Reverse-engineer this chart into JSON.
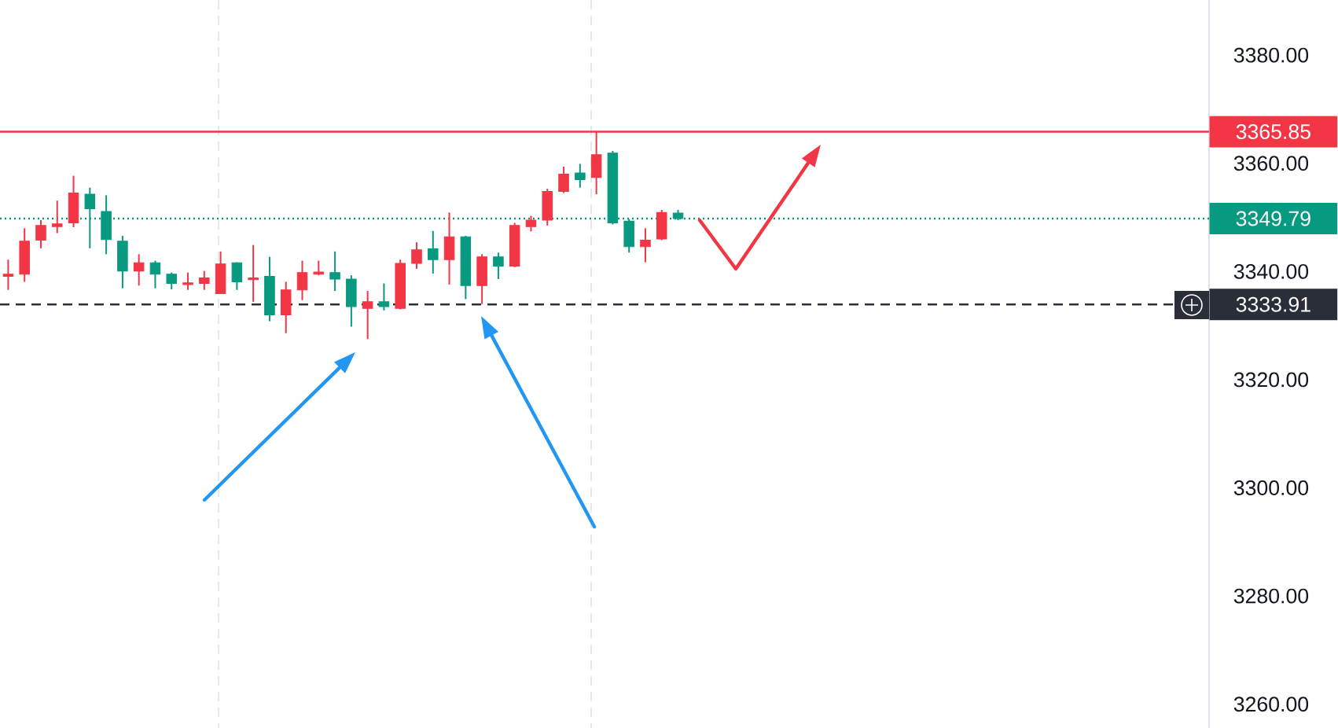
{
  "chart_data": {
    "type": "candlestick",
    "categories": [
      null,
      null,
      null,
      null,
      null,
      null,
      null,
      null,
      null,
      null,
      null,
      null,
      null,
      null,
      null,
      null,
      null,
      null,
      null,
      null,
      null,
      null,
      null,
      null,
      null,
      null,
      null,
      null,
      null,
      null,
      null,
      null,
      null,
      null,
      null,
      null,
      null,
      null,
      null,
      null,
      null,
      null,
      null,
      null,
      null,
      null,
      null,
      null,
      null,
      null,
      null,
      null,
      null,
      null,
      null,
      null,
      null,
      null,
      null,
      null,
      null,
      null,
      null,
      null,
      null,
      null,
      null,
      null,
      null,
      null,
      null,
      null,
      null,
      null
    ],
    "ohlc": [
      [
        3339.1,
        3342.2,
        3336.6,
        3339.5
      ],
      [
        3339.5,
        3348.0,
        3338.1,
        3345.6
      ],
      [
        3345.8,
        3349.5,
        3344.3,
        3348.5
      ],
      [
        3348.3,
        3353.1,
        3347.1,
        3348.8
      ],
      [
        3349.0,
        3357.7,
        3348.2,
        3354.5
      ],
      [
        3354.3,
        3355.5,
        3344.3,
        3351.6
      ],
      [
        3351.1,
        3354.1,
        3343.2,
        3345.9
      ],
      [
        3345.6,
        3346.6,
        3336.9,
        3340.1
      ],
      [
        3340.1,
        3343.2,
        3337.4,
        3341.6
      ],
      [
        3341.6,
        3342.0,
        3336.9,
        3339.5
      ],
      [
        3339.5,
        3339.8,
        3336.7,
        3337.8
      ],
      [
        3337.6,
        3339.8,
        3336.6,
        3337.9
      ],
      [
        3337.8,
        3340.1,
        3336.6,
        3338.8
      ],
      [
        3335.9,
        3343.7,
        3335.9,
        3341.4
      ],
      [
        3341.6,
        3341.7,
        3336.6,
        3338.1
      ],
      [
        3338.5,
        3344.9,
        3334.4,
        3338.8
      ],
      [
        3339.1,
        3342.7,
        3330.8,
        3332.0
      ],
      [
        3332.0,
        3338.1,
        3328.6,
        3336.6
      ],
      [
        3336.6,
        3342.0,
        3334.7,
        3339.8
      ],
      [
        3339.5,
        3342.0,
        3339.3,
        3339.9
      ],
      [
        3339.8,
        3343.7,
        3336.4,
        3338.6
      ],
      [
        3338.6,
        3339.3,
        3329.8,
        3333.5
      ],
      [
        3333.2,
        3336.4,
        3327.5,
        3334.4
      ],
      [
        3334.4,
        3337.8,
        3332.8,
        3333.5
      ],
      [
        3333.2,
        3342.2,
        3333.0,
        3341.5
      ],
      [
        3341.5,
        3345.4,
        3340.5,
        3344.0
      ],
      [
        3344.2,
        3347.5,
        3339.6,
        3342.2
      ],
      [
        3342.2,
        3350.9,
        3337.6,
        3346.4
      ],
      [
        3346.4,
        3346.6,
        3334.9,
        3337.4
      ],
      [
        3337.4,
        3343.2,
        3334.0,
        3342.7
      ],
      [
        3342.7,
        3343.5,
        3338.6,
        3341.0
      ],
      [
        3341.0,
        3349.0,
        3340.8,
        3348.5
      ],
      [
        3348.3,
        3350.3,
        3347.4,
        3349.5
      ],
      [
        3349.5,
        3355.3,
        3348.5,
        3354.8
      ],
      [
        3354.8,
        3359.4,
        3354.5,
        3358.0
      ],
      [
        3358.2,
        3359.9,
        3355.5,
        3357.0
      ],
      [
        3357.4,
        3365.8,
        3354.3,
        3361.6
      ],
      [
        3361.9,
        3362.3,
        3348.7,
        3349.0
      ],
      [
        3349.3,
        3349.7,
        3343.5,
        3344.6
      ],
      [
        3344.6,
        3348.0,
        3341.7,
        3345.8
      ],
      [
        3346.0,
        3351.4,
        3345.8,
        3350.9
      ],
      [
        3350.8,
        3351.4,
        3349.5,
        3349.8
      ],
      null,
      null,
      null,
      null,
      null,
      null,
      null,
      null,
      null,
      null,
      null,
      null,
      null,
      null,
      null,
      null,
      null,
      null,
      null,
      null,
      null,
      null,
      null,
      null,
      null,
      null,
      null,
      null,
      null,
      null,
      null,
      null
    ],
    "colors": [
      "#f23645",
      "#f23645",
      "#f23645",
      "#f23645",
      "#f23645",
      "#089981",
      "#089981",
      "#089981",
      "#f23645",
      "#089981",
      "#089981",
      "#f23645",
      "#f23645",
      "#f23645",
      "#089981",
      "#f23645",
      "#089981",
      "#f23645",
      "#f23645",
      "#f23645",
      "#089981",
      "#089981",
      "#f23645",
      "#089981",
      "#f23645",
      "#f23645",
      "#089981",
      "#f23645",
      "#089981",
      "#f23645",
      "#089981",
      "#f23645",
      "#f23645",
      "#f23645",
      "#f23645",
      "#089981",
      "#f23645",
      "#089981",
      "#089981",
      "#f23645",
      "#f23645",
      "#089981",
      null,
      null,
      null,
      null,
      null,
      null,
      null,
      null,
      null,
      null,
      null,
      null,
      null,
      null,
      null,
      null,
      null,
      null,
      null,
      null,
      null,
      null,
      null,
      null,
      null,
      null,
      null,
      null,
      null,
      null,
      null,
      null
    ],
    "ylim": [
      3255.6,
      3390.2
    ],
    "yticks": [
      {
        "value": 3260,
        "label": "3260.00"
      },
      {
        "value": 3280,
        "label": "3280.00"
      },
      {
        "value": 3300,
        "label": "3300.00"
      },
      {
        "value": 3320,
        "label": "3320.00"
      },
      {
        "value": 3340,
        "label": "3340.00"
      },
      {
        "value": 3360,
        "label": "3360.00"
      },
      {
        "value": 3380,
        "label": "3380.00"
      }
    ],
    "tick_labels": "y",
    "ref_lines": [
      {
        "axis": "y",
        "value": 3365.85,
        "label": "3365.85",
        "color": "#f23645",
        "line_style": "solid"
      },
      {
        "axis": "y",
        "value": 3349.79,
        "label": "3349.79",
        "color": "#089981",
        "line_style": "dotted"
      },
      {
        "axis": "y",
        "value": 3333.91,
        "label": "3333.91",
        "color": "#2a2e39",
        "line_style": "dashed"
      }
    ]
  }
}
